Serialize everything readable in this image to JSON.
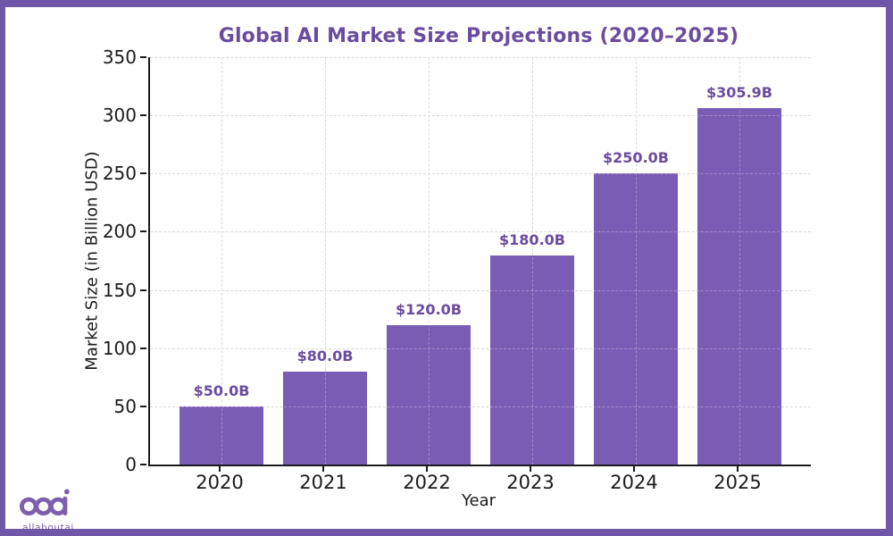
{
  "page": {
    "background": "#ffffff",
    "border_color": "#7157A8"
  },
  "logo": {
    "text": "allaboutai",
    "color": "#7D5FAE"
  },
  "chart_data": {
    "type": "bar",
    "title": "Global AI Market Size Projections (2020–2025)",
    "xlabel": "Year",
    "ylabel": "Market Size (in Billion USD)",
    "categories": [
      "2020",
      "2021",
      "2022",
      "2023",
      "2024",
      "2025"
    ],
    "values": [
      50,
      80,
      120,
      180,
      250,
      305.9
    ],
    "bar_labels": [
      "$50.0B",
      "$80.0B",
      "$120.0B",
      "$180.0B",
      "$250.0B",
      "$305.9B"
    ],
    "ylim": [
      0,
      350
    ],
    "yticks": [
      0,
      50,
      100,
      150,
      200,
      250,
      300,
      350
    ],
    "grid": "dashed-both-axes",
    "legend": "none",
    "colors": {
      "bar": "#7A5CB5",
      "value_label": "#6A4C9F",
      "title": "#6A4C9F",
      "axis_text": "#1B1B1B",
      "gridline": "#C8C8C8",
      "spine": "#1B1B1B"
    }
  }
}
